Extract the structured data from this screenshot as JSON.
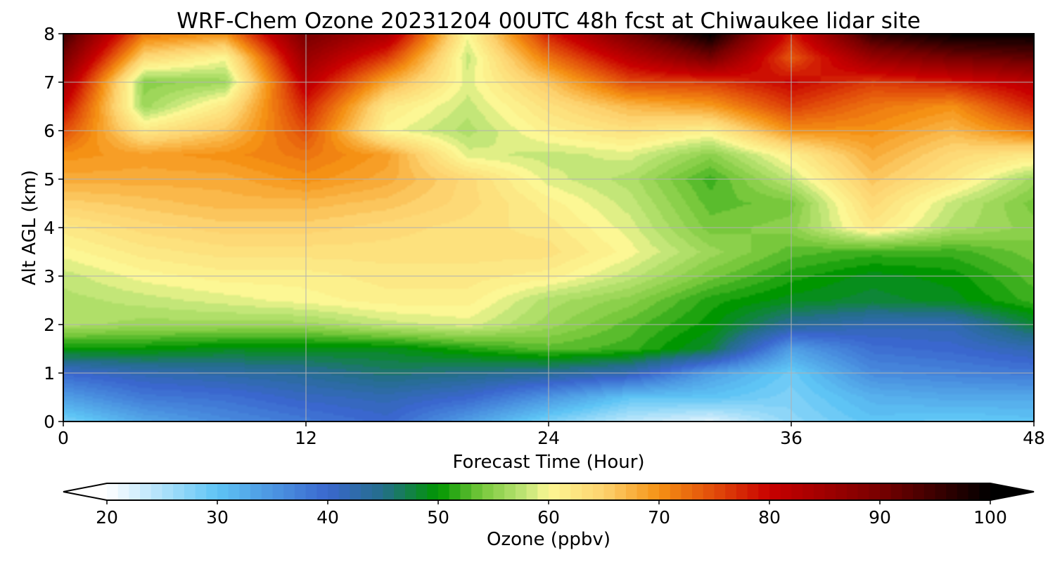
{
  "chart_data": {
    "type": "heatmap",
    "title": "WRF-Chem Ozone  20231204 00UTC 48h fcst at Chiwaukee lidar site",
    "xlabel": "Forecast Time (Hour)",
    "ylabel": "Alt AGL (km)",
    "xlim": [
      0,
      48
    ],
    "ylim": [
      0,
      8
    ],
    "xticks": [
      0,
      12,
      24,
      36,
      48
    ],
    "yticks": [
      0,
      1,
      2,
      3,
      4,
      5,
      6,
      7,
      8
    ],
    "grid": true,
    "x": [
      0,
      4,
      8,
      12,
      16,
      20,
      24,
      28,
      32,
      36,
      40,
      44,
      48
    ],
    "y": [
      0,
      0.5,
      1,
      1.5,
      2,
      2.5,
      3,
      3.5,
      4,
      4.5,
      5,
      5.5,
      6,
      6.5,
      7,
      7.5,
      8
    ],
    "z": [
      [
        28,
        33,
        36,
        38,
        40,
        34,
        28,
        24,
        22,
        27,
        30,
        29,
        30
      ],
      [
        34,
        38,
        39,
        41,
        42,
        40,
        35,
        30,
        30,
        28,
        32,
        33,
        33
      ],
      [
        40,
        42,
        43,
        44,
        46,
        45,
        44,
        42,
        34,
        29,
        36,
        37,
        38
      ],
      [
        50,
        50,
        49,
        49,
        49,
        51,
        53,
        52,
        48,
        34,
        39,
        40,
        42
      ],
      [
        57,
        56,
        56,
        56,
        58,
        59,
        56,
        53,
        50,
        44,
        42,
        42,
        48
      ],
      [
        57,
        58,
        59,
        60,
        61,
        61,
        57,
        55,
        51,
        49,
        48,
        49,
        52
      ],
      [
        58,
        60,
        61,
        61,
        62,
        62,
        61,
        58,
        54,
        51,
        49,
        50,
        53
      ],
      [
        60,
        62,
        63,
        63,
        63,
        63,
        63,
        60,
        56,
        53,
        52,
        52,
        54
      ],
      [
        62,
        64,
        65,
        65,
        64,
        63,
        62,
        59,
        54,
        55,
        62,
        57,
        55
      ],
      [
        65,
        66,
        67,
        67,
        66,
        64,
        61,
        58,
        53,
        54,
        64,
        58,
        54
      ],
      [
        68,
        68,
        68,
        70,
        68,
        64,
        59,
        57,
        52,
        58,
        66,
        62,
        56
      ],
      [
        70,
        69,
        70,
        72,
        69,
        59,
        58,
        59,
        55,
        61,
        68,
        64,
        62
      ],
      [
        75,
        62,
        66,
        75,
        60,
        57,
        61,
        63,
        61,
        70,
        70,
        67,
        72
      ],
      [
        80,
        56,
        62,
        78,
        62,
        58,
        63,
        67,
        69,
        76,
        72,
        70,
        78
      ],
      [
        85,
        55,
        56,
        82,
        68,
        59,
        66,
        75,
        76,
        80,
        76,
        78,
        82
      ],
      [
        90,
        64,
        60,
        86,
        76,
        58,
        72,
        82,
        90,
        74,
        86,
        90,
        92
      ],
      [
        95,
        72,
        70,
        90,
        84,
        60,
        78,
        90,
        100,
        78,
        96,
        100,
        100
      ]
    ],
    "colorbar": {
      "label": "Ozone  (ppbv)",
      "min": 20,
      "max": 100,
      "ticks": [
        20,
        30,
        40,
        50,
        60,
        70,
        80,
        90,
        100
      ],
      "extend": "both"
    }
  }
}
